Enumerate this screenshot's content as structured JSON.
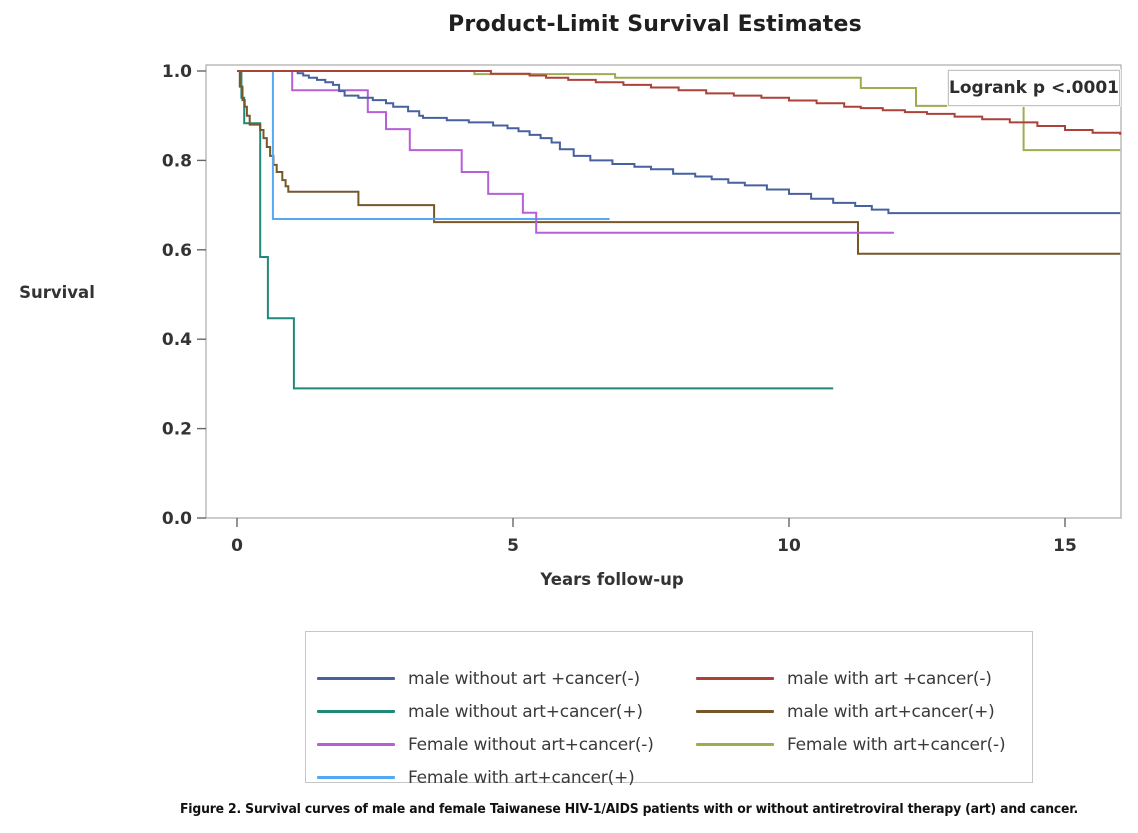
{
  "chart_data": {
    "type": "line",
    "step": true,
    "title": "Product-Limit Survival Estimates",
    "xlabel": "Years follow-up",
    "ylabel": "Survival",
    "annotation": "Logrank p <.0001",
    "xlim": [
      0,
      16
    ],
    "ylim": [
      0.0,
      1.0
    ],
    "grid": false,
    "legend_position": "bottom",
    "xticks": [
      {
        "v": 0,
        "label": "0"
      },
      {
        "v": 5,
        "label": "5"
      },
      {
        "v": 10,
        "label": "10"
      },
      {
        "v": 15,
        "label": "15"
      }
    ],
    "yticks": [
      {
        "v": 1.0,
        "label": "1.0"
      },
      {
        "v": 0.8,
        "label": "0.8"
      },
      {
        "v": 0.6,
        "label": "0.6"
      },
      {
        "v": 0.4,
        "label": "0.4"
      },
      {
        "v": 0.2,
        "label": "0.2"
      },
      {
        "v": 0.0,
        "label": "0.0"
      }
    ],
    "series": [
      {
        "id": "male-without-art-cancer-pos",
        "name": "male without art+cancer(+)",
        "color": "#1f8a7a",
        "points": [
          [
            0,
            1.0
          ],
          [
            0.08,
            1.0
          ],
          [
            0.08,
            0.94
          ],
          [
            0.13,
            0.94
          ],
          [
            0.13,
            0.883
          ],
          [
            0.42,
            0.883
          ],
          [
            0.42,
            0.584
          ],
          [
            0.56,
            0.584
          ],
          [
            0.56,
            0.447
          ],
          [
            1.03,
            0.447
          ],
          [
            1.03,
            0.29
          ],
          [
            10.8,
            0.29
          ]
        ]
      },
      {
        "id": "male-with-art-cancer-pos",
        "name": "male with art+cancer(+)",
        "color": "#75572a",
        "points": [
          [
            0,
            1.0
          ],
          [
            0.05,
            1.0
          ],
          [
            0.05,
            0.965
          ],
          [
            0.1,
            0.935
          ],
          [
            0.14,
            0.92
          ],
          [
            0.18,
            0.9
          ],
          [
            0.23,
            0.88
          ],
          [
            0.42,
            0.88
          ],
          [
            0.42,
            0.868
          ],
          [
            0.48,
            0.85
          ],
          [
            0.54,
            0.83
          ],
          [
            0.6,
            0.81
          ],
          [
            0.66,
            0.79
          ],
          [
            0.72,
            0.774
          ],
          [
            0.82,
            0.756
          ],
          [
            0.88,
            0.742
          ],
          [
            0.93,
            0.73
          ],
          [
            2.2,
            0.73
          ],
          [
            2.2,
            0.7
          ],
          [
            3.57,
            0.7
          ],
          [
            3.57,
            0.662
          ],
          [
            11.25,
            0.662
          ],
          [
            11.25,
            0.591
          ],
          [
            16,
            0.591
          ]
        ]
      },
      {
        "id": "female-with-art-cancer-pos",
        "name": "Female with art+cancer(+)",
        "color": "#55a8f2",
        "points": [
          [
            0,
            1.0
          ],
          [
            0.65,
            1.0
          ],
          [
            0.65,
            0.669
          ],
          [
            6.75,
            0.669
          ]
        ]
      },
      {
        "id": "female-without-art-cancer-neg",
        "name": "Female without art+cancer(-)",
        "color": "#b75fd8",
        "points": [
          [
            0,
            1.0
          ],
          [
            1.0,
            1.0
          ],
          [
            1.0,
            0.957
          ],
          [
            2.37,
            0.957
          ],
          [
            2.37,
            0.908
          ],
          [
            2.7,
            0.908
          ],
          [
            2.7,
            0.87
          ],
          [
            3.13,
            0.87
          ],
          [
            3.13,
            0.823
          ],
          [
            4.07,
            0.823
          ],
          [
            4.07,
            0.774
          ],
          [
            4.55,
            0.774
          ],
          [
            4.55,
            0.725
          ],
          [
            5.18,
            0.725
          ],
          [
            5.18,
            0.683
          ],
          [
            5.42,
            0.683
          ],
          [
            5.42,
            0.638
          ],
          [
            11.9,
            0.638
          ]
        ]
      },
      {
        "id": "male-without-art-cancer-neg",
        "name": "male without art +cancer(-)",
        "color": "#47619e",
        "points": [
          [
            0,
            1.0
          ],
          [
            1.05,
            1.0
          ],
          [
            1.1,
            0.995
          ],
          [
            1.2,
            0.99
          ],
          [
            1.3,
            0.985
          ],
          [
            1.45,
            0.98
          ],
          [
            1.6,
            0.975
          ],
          [
            1.74,
            0.969
          ],
          [
            1.85,
            0.955
          ],
          [
            1.95,
            0.945
          ],
          [
            2.2,
            0.94
          ],
          [
            2.46,
            0.935
          ],
          [
            2.7,
            0.928
          ],
          [
            2.83,
            0.92
          ],
          [
            3.1,
            0.91
          ],
          [
            3.3,
            0.9
          ],
          [
            3.37,
            0.895
          ],
          [
            3.8,
            0.89
          ],
          [
            4.2,
            0.885
          ],
          [
            4.64,
            0.878
          ],
          [
            4.9,
            0.872
          ],
          [
            5.1,
            0.865
          ],
          [
            5.3,
            0.857
          ],
          [
            5.5,
            0.85
          ],
          [
            5.7,
            0.84
          ],
          [
            5.85,
            0.825
          ],
          [
            6.1,
            0.81
          ],
          [
            6.4,
            0.8
          ],
          [
            6.8,
            0.792
          ],
          [
            7.2,
            0.786
          ],
          [
            7.5,
            0.78
          ],
          [
            7.9,
            0.77
          ],
          [
            8.3,
            0.764
          ],
          [
            8.6,
            0.758
          ],
          [
            8.9,
            0.75
          ],
          [
            9.2,
            0.744
          ],
          [
            9.6,
            0.735
          ],
          [
            10.0,
            0.725
          ],
          [
            10.4,
            0.714
          ],
          [
            10.8,
            0.705
          ],
          [
            11.2,
            0.698
          ],
          [
            11.5,
            0.69
          ],
          [
            11.8,
            0.682
          ],
          [
            16,
            0.682
          ]
        ]
      },
      {
        "id": "female-with-art-cancer-neg",
        "name": "Female with art+cancer(-)",
        "color": "#a0ab50",
        "points": [
          [
            0,
            1.0
          ],
          [
            4.3,
            1.0
          ],
          [
            4.3,
            0.993
          ],
          [
            6.85,
            0.993
          ],
          [
            6.85,
            0.985
          ],
          [
            11.3,
            0.985
          ],
          [
            11.3,
            0.962
          ],
          [
            12.3,
            0.962
          ],
          [
            12.3,
            0.922
          ],
          [
            14.25,
            0.922
          ],
          [
            14.25,
            0.823
          ],
          [
            16,
            0.823
          ]
        ]
      },
      {
        "id": "male-with-art-cancer-neg",
        "name": "male with art +cancer(-)",
        "color": "#ab423a",
        "points": [
          [
            0,
            1.0
          ],
          [
            4.6,
            1.0
          ],
          [
            4.6,
            0.994
          ],
          [
            5.3,
            0.99
          ],
          [
            5.6,
            0.985
          ],
          [
            6.0,
            0.98
          ],
          [
            6.5,
            0.975
          ],
          [
            7.0,
            0.969
          ],
          [
            7.5,
            0.963
          ],
          [
            8.0,
            0.957
          ],
          [
            8.5,
            0.95
          ],
          [
            9.0,
            0.945
          ],
          [
            9.5,
            0.94
          ],
          [
            10.0,
            0.934
          ],
          [
            10.5,
            0.928
          ],
          [
            11.0,
            0.92
          ],
          [
            11.3,
            0.917
          ],
          [
            11.7,
            0.912
          ],
          [
            12.1,
            0.908
          ],
          [
            12.5,
            0.904
          ],
          [
            13.0,
            0.898
          ],
          [
            13.5,
            0.892
          ],
          [
            14.0,
            0.885
          ],
          [
            14.5,
            0.877
          ],
          [
            15.0,
            0.868
          ],
          [
            15.5,
            0.862
          ],
          [
            16,
            0.857
          ]
        ]
      }
    ]
  },
  "legend": {
    "items": [
      {
        "series": "male-without-art-cancer-neg",
        "label": "male without art +cancer(-)"
      },
      {
        "series": "male-with-art-cancer-neg",
        "label": "male with art +cancer(-)"
      },
      {
        "series": "male-without-art-cancer-pos",
        "label": "male without art+cancer(+)"
      },
      {
        "series": "male-with-art-cancer-pos",
        "label": "male with art+cancer(+)"
      },
      {
        "series": "female-without-art-cancer-neg",
        "label": "Female without art+cancer(-)"
      },
      {
        "series": "female-with-art-cancer-neg",
        "label": "Female with art+cancer(-)"
      },
      {
        "series": "female-with-art-cancer-pos",
        "label": "Female with art+cancer(+)"
      }
    ]
  },
  "caption": {
    "prefix": "Figure 2.",
    "text": " Survival curves of male and female Taiwanese HIV-1/AIDS patients with or without antiretroviral therapy (art) and cancer."
  },
  "colors": {
    "frame": "#b0b0b0",
    "tick": "#666666",
    "axis_text": "#333333"
  }
}
